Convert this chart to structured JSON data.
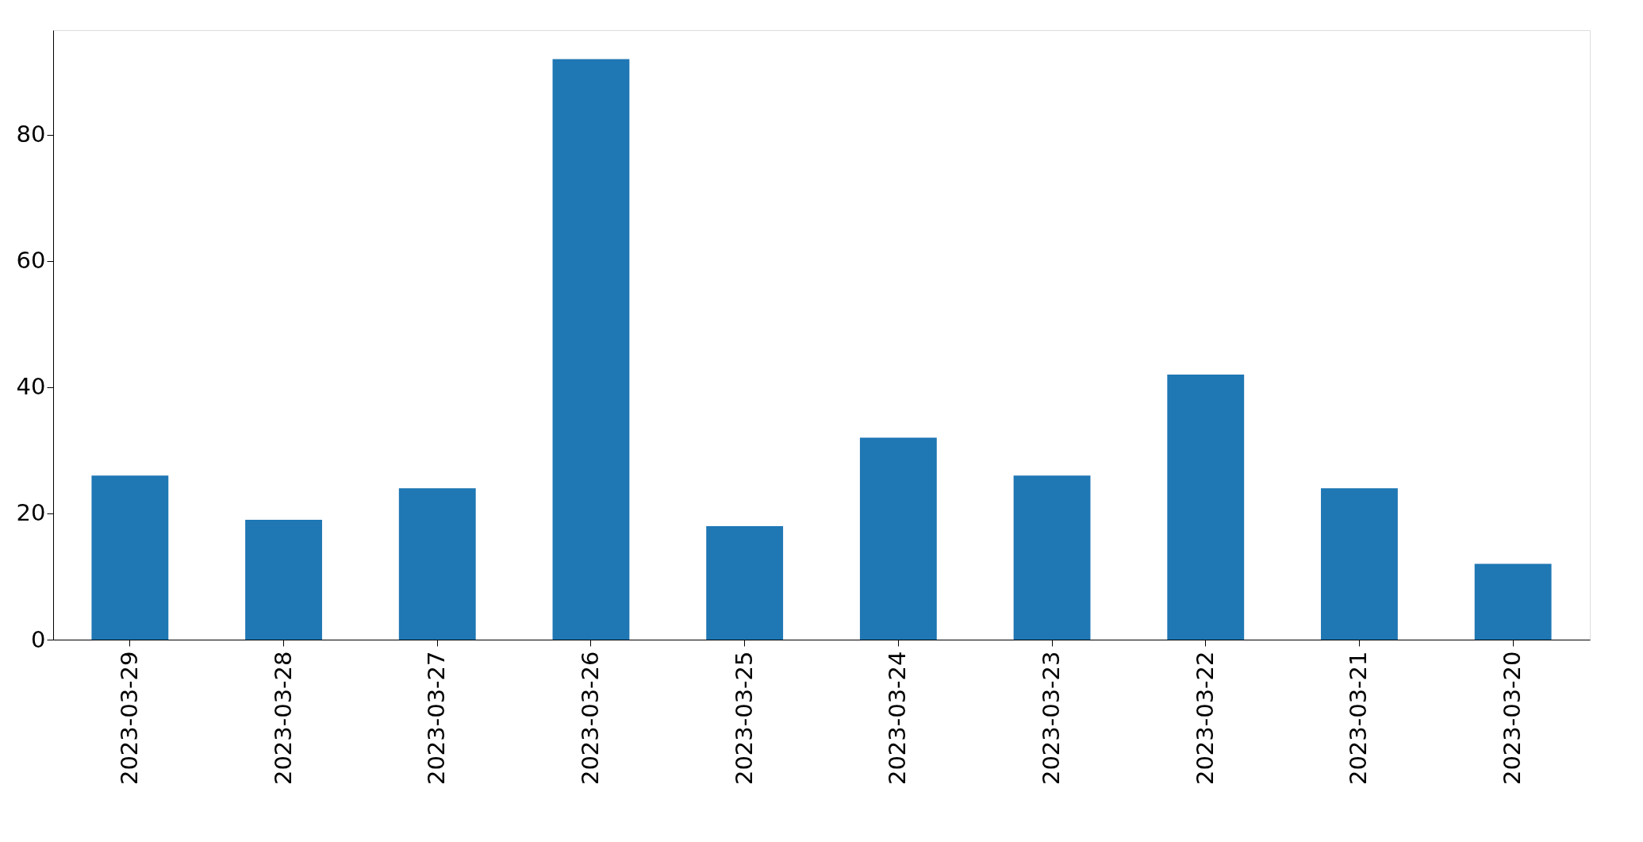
{
  "chart_data": {
    "type": "bar",
    "categories": [
      "2023-03-29",
      "2023-03-28",
      "2023-03-27",
      "2023-03-26",
      "2023-03-25",
      "2023-03-24",
      "2023-03-23",
      "2023-03-22",
      "2023-03-21",
      "2023-03-20"
    ],
    "values": [
      26,
      19,
      24,
      92,
      18,
      32,
      26,
      42,
      24,
      12
    ],
    "color": "#1f77b4",
    "ylim": [
      0,
      96.6
    ],
    "yticks": [
      0,
      20,
      40,
      60,
      80
    ],
    "grid": false
  }
}
